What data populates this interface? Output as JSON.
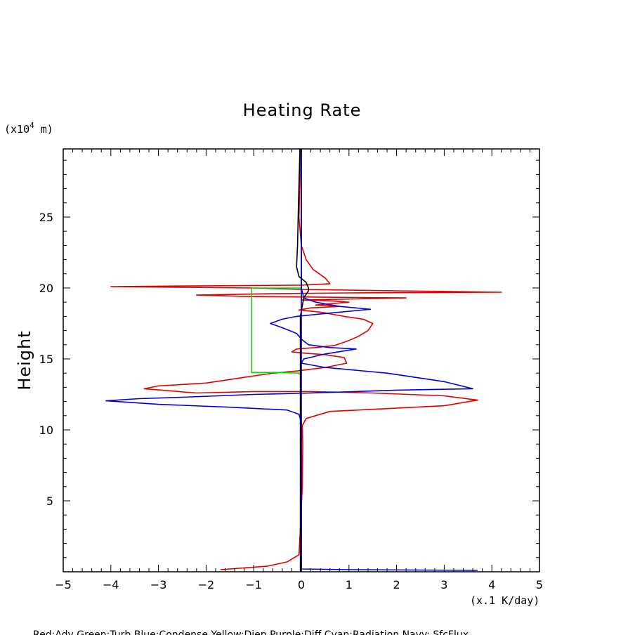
{
  "chart_data": {
    "type": "line",
    "title": "Heating Rate",
    "ylabel": "Height",
    "yunit_prefix": "(x10",
    "yunit_exp": "4",
    "yunit_suffix": " m)",
    "xunit": "(x.1 K/day)",
    "xlim": [
      -5,
      5
    ],
    "ylim": [
      0,
      29.8
    ],
    "xticks": [
      -5,
      -4,
      -3,
      -2,
      -1,
      0,
      1,
      2,
      3,
      4,
      5
    ],
    "xtick_labels": [
      "−5",
      "−4",
      "−3",
      "−2",
      "−1",
      "0",
      "1",
      "2",
      "3",
      "4",
      "5"
    ],
    "yticks": [
      5,
      10,
      15,
      20,
      25
    ],
    "ytick_labels": [
      "5",
      "10",
      "15",
      "20",
      "25"
    ],
    "legend_text": "Red:Adv  Green:Turb  Blue:Condense  Yellow:Diep  Purple:Diff  Cyan:Radiation  Navy: SfcFlux",
    "series": [
      {
        "name": "Adv",
        "color": "#e00000",
        "points": [
          [
            -1.7,
            0.15
          ],
          [
            -0.7,
            0.4
          ],
          [
            -0.3,
            0.7
          ],
          [
            -0.05,
            1.2
          ],
          [
            -0.02,
            3
          ],
          [
            0.02,
            6
          ],
          [
            0.03,
            9
          ],
          [
            0.02,
            10.3
          ],
          [
            0.1,
            10.8
          ],
          [
            0.6,
            11.3
          ],
          [
            1.8,
            11.5
          ],
          [
            3.0,
            11.7
          ],
          [
            3.7,
            12.1
          ],
          [
            3.0,
            12.4
          ],
          [
            1.5,
            12.6
          ],
          [
            0.2,
            12.7
          ],
          [
            -1.0,
            12.7
          ],
          [
            -2.2,
            12.6
          ],
          [
            -3.3,
            12.9
          ],
          [
            -3.0,
            13.1
          ],
          [
            -2.0,
            13.3
          ],
          [
            -1.2,
            13.7
          ],
          [
            -0.6,
            14.0
          ],
          [
            -0.1,
            14.15
          ],
          [
            0.5,
            14.4
          ],
          [
            0.95,
            14.7
          ],
          [
            0.9,
            15.1
          ],
          [
            0.5,
            15.3
          ],
          [
            0.1,
            15.4
          ],
          [
            -0.2,
            15.5
          ],
          [
            -0.1,
            15.7
          ],
          [
            0.3,
            15.8
          ],
          [
            0.7,
            15.95
          ],
          [
            1.0,
            16.3
          ],
          [
            1.2,
            16.6
          ],
          [
            1.4,
            17.0
          ],
          [
            1.5,
            17.5
          ],
          [
            1.3,
            17.8
          ],
          [
            0.9,
            18.0
          ],
          [
            0.4,
            18.3
          ],
          [
            -0.05,
            18.45
          ],
          [
            0.2,
            18.6
          ],
          [
            0.8,
            18.7
          ],
          [
            0.3,
            18.8
          ],
          [
            1.0,
            19.0
          ],
          [
            0.6,
            19.1
          ],
          [
            0.0,
            19.15
          ],
          [
            2.2,
            19.3
          ],
          [
            0.5,
            19.35
          ],
          [
            -1.1,
            19.4
          ],
          [
            -2.2,
            19.5
          ],
          [
            -0.6,
            19.6
          ],
          [
            1.0,
            19.65
          ],
          [
            4.2,
            19.7
          ],
          [
            2.0,
            19.8
          ],
          [
            0.0,
            19.9
          ],
          [
            -1.0,
            20.0
          ],
          [
            -4.0,
            20.1
          ],
          [
            -2.0,
            20.15
          ],
          [
            0.0,
            20.2
          ],
          [
            0.6,
            20.3
          ],
          [
            0.5,
            20.7
          ],
          [
            0.25,
            21.3
          ],
          [
            0.1,
            22.0
          ],
          [
            0.0,
            23.0
          ],
          [
            -0.05,
            25.0
          ],
          [
            -0.03,
            27.5
          ],
          [
            -0.02,
            29.8
          ]
        ]
      },
      {
        "name": "Turb",
        "color": "#00e000",
        "points": [
          [
            0.0,
            20.0
          ],
          [
            -1.05,
            20.0
          ],
          [
            -1.05,
            14.05
          ],
          [
            -0.5,
            14.05
          ],
          [
            -0.05,
            14.0
          ],
          [
            -0.05,
            13.9
          ]
        ]
      },
      {
        "name": "Condense",
        "color": "#0000e0",
        "points": [
          [
            0.0,
            29.8
          ],
          [
            0.0,
            24.0
          ],
          [
            0.0,
            20.0
          ],
          [
            0.05,
            19.3
          ],
          [
            0.3,
            19.0
          ],
          [
            0.8,
            18.7
          ],
          [
            1.45,
            18.5
          ],
          [
            0.5,
            18.2
          ],
          [
            -0.1,
            18.0
          ],
          [
            -0.4,
            17.8
          ],
          [
            -0.65,
            17.5
          ],
          [
            -0.4,
            17.2
          ],
          [
            -0.1,
            16.8
          ],
          [
            0.0,
            16.4
          ],
          [
            0.15,
            16.0
          ],
          [
            0.6,
            15.8
          ],
          [
            1.15,
            15.7
          ],
          [
            0.5,
            15.35
          ],
          [
            0.05,
            15.0
          ],
          [
            0.0,
            14.7
          ],
          [
            0.5,
            14.4
          ],
          [
            1.8,
            14.0
          ],
          [
            3.0,
            13.4
          ],
          [
            3.6,
            12.9
          ],
          [
            2.0,
            12.8
          ],
          [
            0.2,
            12.6
          ],
          [
            -1.0,
            12.5
          ],
          [
            -2.5,
            12.3
          ],
          [
            -3.4,
            12.2
          ],
          [
            -4.1,
            12.05
          ],
          [
            -3.0,
            11.8
          ],
          [
            -1.5,
            11.6
          ],
          [
            -0.3,
            11.4
          ],
          [
            -0.05,
            11.1
          ],
          [
            0.0,
            10.5
          ],
          [
            0.0,
            0.2
          ],
          [
            1.0,
            0.15
          ],
          [
            3.7,
            0.1
          ]
        ]
      },
      {
        "name": "Radiation",
        "color": "#000000",
        "points": [
          [
            -0.02,
            0.0
          ],
          [
            -0.02,
            10.0
          ],
          [
            -0.02,
            18.0
          ],
          [
            0.05,
            19.3
          ],
          [
            0.15,
            19.8
          ],
          [
            0.15,
            20.0
          ],
          [
            0.1,
            20.4
          ],
          [
            -0.05,
            20.8
          ],
          [
            -0.1,
            21.5
          ],
          [
            -0.08,
            23.0
          ],
          [
            -0.06,
            26.0
          ],
          [
            -0.03,
            29.8
          ]
        ]
      },
      {
        "name": "SfcFlux",
        "color": "#000080",
        "points": [
          [
            0.0,
            0.0
          ],
          [
            0.0,
            29.8
          ]
        ]
      }
    ]
  }
}
